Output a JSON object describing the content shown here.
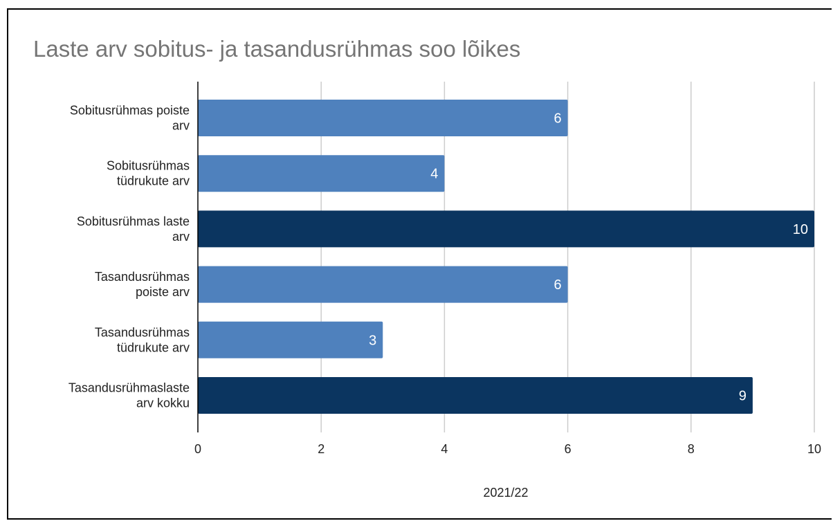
{
  "chart_data": {
    "type": "bar",
    "orientation": "horizontal",
    "title": "Laste arv sobitus- ja tasandusrühmas soo lõikes",
    "xlabel": "2021/22",
    "ylabel": "",
    "categories": [
      [
        "Sobitusrühmas poiste",
        "arv"
      ],
      [
        "Sobitusrühmas",
        "tüdrukute arv"
      ],
      [
        "Sobitusrühmas laste",
        "arv"
      ],
      [
        "Tasandusrühmas",
        "poiste arv"
      ],
      [
        "Tasandusrühmas",
        "tüdrukute arv"
      ],
      [
        "Tasandusrühmaslaste",
        "arv kokku"
      ]
    ],
    "values": [
      6,
      4,
      10,
      6,
      3,
      9
    ],
    "bar_colors": [
      "#4f81bd",
      "#4f81bd",
      "#0b3560",
      "#4f81bd",
      "#4f81bd",
      "#0b3560"
    ],
    "xlim": [
      0,
      10
    ],
    "xticks": [
      0,
      2,
      4,
      6,
      8,
      10
    ],
    "grid": "vertical",
    "data_labels": true,
    "legend": "none"
  },
  "colors": {
    "title": "#757575",
    "grid": "#cccccc",
    "axis": "#000000",
    "label_text": "#ffffff"
  }
}
